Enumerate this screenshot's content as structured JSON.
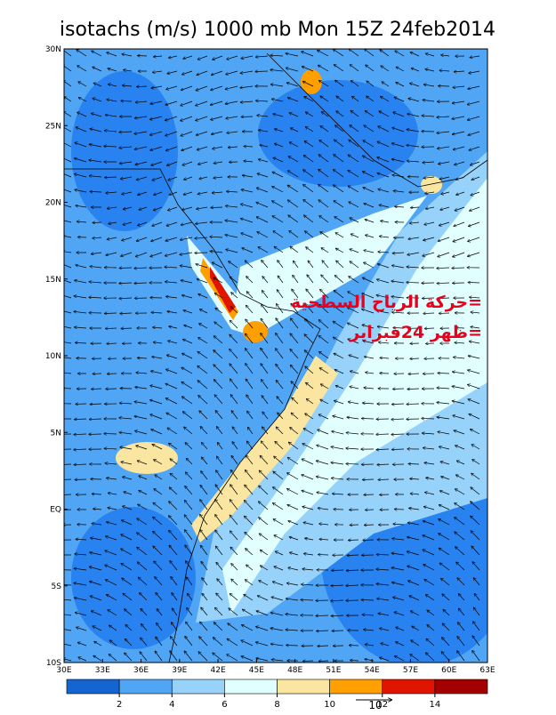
{
  "title": "isotachs (m/s) 1000 mb Mon 15Z 24feb2014",
  "lon_labels": [
    "30E",
    "33E",
    "36E",
    "39E",
    "42E",
    "45E",
    "48E",
    "51E",
    "54E",
    "57E",
    "60E",
    "63E"
  ],
  "lat_labels": [
    "30N",
    "25N",
    "20N",
    "15N",
    "10N",
    "5N",
    "EQ",
    "5S",
    "10S"
  ],
  "annotation": {
    "line1": "=حركة الرياح السطحية",
    "line2": "=ظهر 24فبراير"
  },
  "reference_vector": "10",
  "colorbar": {
    "levels": [
      2,
      4,
      6,
      8,
      10,
      12,
      14
    ],
    "colors": [
      "#1464d2",
      "#2882f0",
      "#50a5f5",
      "#96d2fa",
      "#e1ffff",
      "#fae6a0",
      "#ffa000",
      "#e11400",
      "#a50000"
    ]
  }
}
